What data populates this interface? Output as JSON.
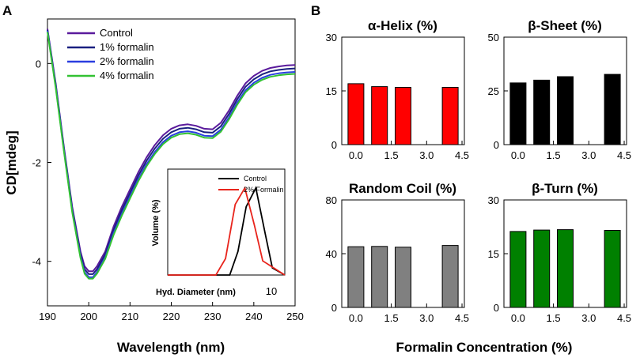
{
  "panel_labels": [
    "A",
    "B"
  ],
  "colors": {
    "control": "#5a1a9c",
    "f1": "#1a2080",
    "f2": "#2a3ee0",
    "f4": "#33c233",
    "inset_control": "#000000",
    "inset_formalin": "#e8241c"
  },
  "chart_data": [
    {
      "id": "cd",
      "type": "line",
      "xlabel": "Wavelength (nm)",
      "ylabel": "CD[mdeg]",
      "xlim": [
        190,
        250
      ],
      "ylim": [
        -4.9,
        0.9
      ],
      "xticks": [
        190,
        200,
        210,
        220,
        230,
        240,
        250
      ],
      "yticks": [
        0,
        -2,
        -4
      ],
      "legend_position": "top-left",
      "series": [
        {
          "name": "Control",
          "color_key": "control",
          "x": [
            190,
            192,
            194,
            196,
            198,
            199,
            200,
            201,
            202,
            204,
            206,
            208,
            210,
            212,
            214,
            216,
            218,
            220,
            222,
            224,
            226,
            228,
            230,
            232,
            234,
            236,
            238,
            240,
            242,
            244,
            246,
            248,
            250
          ],
          "y": [
            0.7,
            -0.4,
            -1.7,
            -2.9,
            -3.8,
            -4.1,
            -4.2,
            -4.2,
            -4.1,
            -3.8,
            -3.3,
            -2.9,
            -2.55,
            -2.2,
            -1.9,
            -1.65,
            -1.45,
            -1.32,
            -1.25,
            -1.23,
            -1.26,
            -1.32,
            -1.33,
            -1.2,
            -0.95,
            -0.65,
            -0.4,
            -0.25,
            -0.15,
            -0.09,
            -0.06,
            -0.04,
            -0.03
          ]
        },
        {
          "name": "1% formalin",
          "color_key": "f1",
          "x": [
            190,
            192,
            194,
            196,
            198,
            199,
            200,
            201,
            202,
            204,
            206,
            208,
            210,
            212,
            214,
            216,
            218,
            220,
            222,
            224,
            226,
            228,
            230,
            232,
            234,
            236,
            238,
            240,
            242,
            244,
            246,
            248,
            250
          ],
          "y": [
            0.68,
            -0.43,
            -1.73,
            -2.94,
            -3.85,
            -4.16,
            -4.26,
            -4.26,
            -4.16,
            -3.86,
            -3.37,
            -2.97,
            -2.62,
            -2.27,
            -1.97,
            -1.72,
            -1.52,
            -1.39,
            -1.32,
            -1.3,
            -1.33,
            -1.39,
            -1.4,
            -1.27,
            -1.02,
            -0.72,
            -0.47,
            -0.32,
            -0.22,
            -0.16,
            -0.13,
            -0.11,
            -0.1
          ]
        },
        {
          "name": "2% formalin",
          "color_key": "f2",
          "x": [
            190,
            192,
            194,
            196,
            198,
            199,
            200,
            201,
            202,
            204,
            206,
            208,
            210,
            212,
            214,
            216,
            218,
            220,
            222,
            224,
            226,
            228,
            230,
            232,
            234,
            236,
            238,
            240,
            242,
            244,
            246,
            248,
            250
          ],
          "y": [
            0.66,
            -0.46,
            -1.76,
            -2.98,
            -3.9,
            -4.22,
            -4.32,
            -4.32,
            -4.22,
            -3.92,
            -3.43,
            -3.04,
            -2.69,
            -2.34,
            -2.04,
            -1.79,
            -1.59,
            -1.46,
            -1.39,
            -1.37,
            -1.4,
            -1.46,
            -1.47,
            -1.34,
            -1.09,
            -0.79,
            -0.54,
            -0.39,
            -0.29,
            -0.23,
            -0.2,
            -0.18,
            -0.17
          ]
        },
        {
          "name": "4% formalin",
          "color_key": "f4",
          "x": [
            190,
            192,
            194,
            196,
            198,
            199,
            200,
            201,
            202,
            204,
            206,
            208,
            210,
            212,
            214,
            216,
            218,
            220,
            222,
            224,
            226,
            228,
            230,
            232,
            234,
            236,
            238,
            240,
            242,
            244,
            246,
            248,
            250
          ],
          "y": [
            0.64,
            -0.49,
            -1.79,
            -3.01,
            -3.93,
            -4.25,
            -4.35,
            -4.35,
            -4.25,
            -3.95,
            -3.47,
            -3.08,
            -2.73,
            -2.38,
            -2.08,
            -1.83,
            -1.63,
            -1.5,
            -1.43,
            -1.41,
            -1.44,
            -1.5,
            -1.51,
            -1.38,
            -1.13,
            -0.83,
            -0.58,
            -0.43,
            -0.33,
            -0.27,
            -0.24,
            -0.22,
            -0.21
          ]
        }
      ]
    },
    {
      "id": "inset",
      "type": "line",
      "xlabel": "Hyd. Diameter (nm)",
      "ylabel": "Volume (%)",
      "tick_label": "10",
      "xlim": [
        2,
        10.5
      ],
      "ylim": [
        0,
        45
      ],
      "legend_position": "top-right",
      "series": [
        {
          "name": "Control",
          "color_key": "inset_control",
          "x": [
            2,
            6.5,
            7.1,
            7.7,
            8.4,
            9.1,
            9.6,
            10.5
          ],
          "y": [
            0,
            0,
            10,
            29,
            37,
            17,
            3,
            0
          ]
        },
        {
          "name": "2% Formalin",
          "color_key": "inset_formalin",
          "x": [
            2,
            5.5,
            6.2,
            6.9,
            7.6,
            8.3,
            8.9,
            10.5
          ],
          "y": [
            0,
            0,
            7,
            30,
            37,
            21,
            6,
            0
          ]
        }
      ]
    },
    {
      "id": "helix",
      "type": "bar",
      "title": "α-Helix (%)",
      "color": "#ff0000",
      "categories": [
        0,
        1,
        2,
        4
      ],
      "values": [
        17,
        16.2,
        16,
        16
      ],
      "xlim": [
        -0.6,
        4.6
      ],
      "ylim": [
        0,
        30
      ],
      "yticks": [
        0,
        15,
        30
      ],
      "xticks": [
        "0.0",
        "1.5",
        "3.0",
        "4.5"
      ]
    },
    {
      "id": "sheet",
      "type": "bar",
      "title": "β-Sheet (%)",
      "color": "#000000",
      "categories": [
        0,
        1,
        2,
        4
      ],
      "values": [
        28.7,
        30,
        31.6,
        32.7
      ],
      "xlim": [
        -0.6,
        4.6
      ],
      "ylim": [
        0,
        50
      ],
      "yticks": [
        0,
        25,
        50
      ],
      "xticks": [
        "0.0",
        "1.5",
        "3.0",
        "4.5"
      ]
    },
    {
      "id": "coil",
      "type": "bar",
      "title": "Random Coil (%)",
      "color": "#808080",
      "categories": [
        0,
        1,
        2,
        4
      ],
      "values": [
        45.2,
        45.4,
        44.8,
        46.1
      ],
      "xlim": [
        -0.6,
        4.6
      ],
      "ylim": [
        0,
        80
      ],
      "yticks": [
        0,
        40,
        80
      ],
      "xticks": [
        "0.0",
        "1.5",
        "3.0",
        "4.5"
      ]
    },
    {
      "id": "turn",
      "type": "bar",
      "title": "β-Turn (%)",
      "color": "#008000",
      "categories": [
        0,
        1,
        2,
        4
      ],
      "values": [
        21.2,
        21.6,
        21.7,
        21.5
      ],
      "xlim": [
        -0.6,
        4.6
      ],
      "ylim": [
        0,
        30
      ],
      "yticks": [
        0,
        15,
        30
      ],
      "xticks": [
        "0.0",
        "1.5",
        "3.0",
        "4.5"
      ]
    }
  ],
  "panel_b_xlabel": "Formalin Concentration (%)"
}
